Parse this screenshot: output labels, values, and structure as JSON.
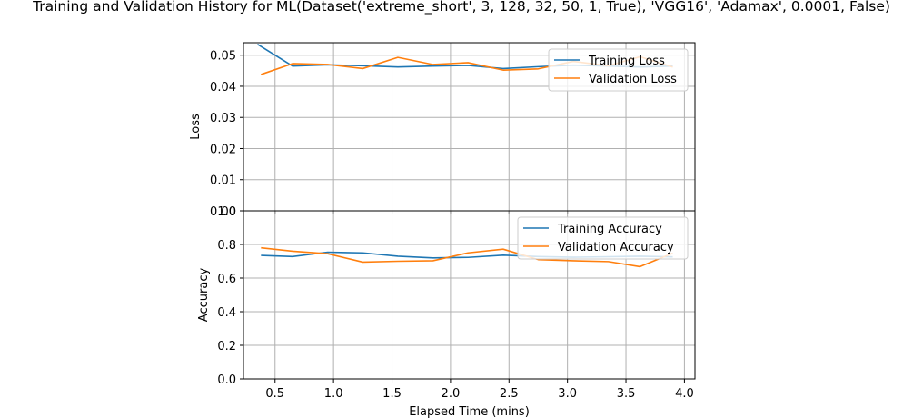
{
  "title": "Training and Validation History for ML(Dataset('extreme_short', 3, 128, 32, 50, 1, True), 'VGG16', 'Adamax', 0.0001, False)",
  "colors": {
    "training": "#1f77b4",
    "validation": "#ff7f0e",
    "grid": "#b0b0b0"
  },
  "chart_data": [
    {
      "type": "line",
      "ylabel": "Loss",
      "xlabel": "",
      "xlim": [
        0.23,
        4.09
      ],
      "ylim": [
        0.0,
        0.054
      ],
      "yticks": [
        0.0,
        0.01,
        0.02,
        0.03,
        0.04,
        0.05
      ],
      "ytick_labels": [
        "0.00",
        "0.01",
        "0.02",
        "0.03",
        "0.04",
        "0.05"
      ],
      "grid": true,
      "legend": "top-right",
      "series": [
        {
          "name": "Training Loss",
          "x": [
            0.35,
            0.65,
            0.95,
            1.25,
            1.55,
            1.85,
            2.15,
            2.45,
            2.75,
            3.05,
            3.35,
            3.62,
            3.9
          ],
          "values": [
            0.0535,
            0.0465,
            0.0469,
            0.0466,
            0.0462,
            0.0465,
            0.0467,
            0.0457,
            0.0463,
            0.0468,
            0.0465,
            0.0462,
            0.0465
          ]
        },
        {
          "name": "Validation Loss",
          "x": [
            0.38,
            0.65,
            0.95,
            1.25,
            1.55,
            1.85,
            2.15,
            2.45,
            2.75,
            3.05,
            3.35,
            3.62,
            3.9
          ],
          "values": [
            0.0438,
            0.0473,
            0.047,
            0.0457,
            0.0493,
            0.047,
            0.0476,
            0.0452,
            0.0456,
            0.048,
            0.0466,
            0.0495,
            0.0462
          ]
        }
      ]
    },
    {
      "type": "line",
      "ylabel": "Accuracy",
      "xlabel": "Elapsed Time (mins)",
      "xlim": [
        0.23,
        4.09
      ],
      "ylim": [
        0.0,
        1.0
      ],
      "yticks": [
        0.0,
        0.2,
        0.4,
        0.6,
        0.8,
        1.0
      ],
      "ytick_labels": [
        "0.0",
        "0.2",
        "0.4",
        "0.6",
        "0.8",
        "1.0"
      ],
      "xticks": [
        0.5,
        1.0,
        1.5,
        2.0,
        2.5,
        3.0,
        3.5,
        4.0
      ],
      "xtick_labels": [
        "0.5",
        "1.0",
        "1.5",
        "2.0",
        "2.5",
        "3.0",
        "3.5",
        "4.0"
      ],
      "grid": true,
      "legend": "top-right",
      "series": [
        {
          "name": "Training Accuracy",
          "x": [
            0.38,
            0.65,
            0.95,
            1.25,
            1.55,
            1.85,
            2.15,
            2.45,
            2.75,
            3.05,
            3.35,
            3.62,
            3.9
          ],
          "values": [
            0.735,
            0.728,
            0.754,
            0.75,
            0.73,
            0.72,
            0.723,
            0.736,
            0.728,
            0.724,
            0.727,
            0.73,
            0.726
          ]
        },
        {
          "name": "Validation Accuracy",
          "x": [
            0.38,
            0.65,
            0.95,
            1.25,
            1.55,
            1.85,
            2.15,
            2.45,
            2.75,
            3.05,
            3.35,
            3.62,
            3.9
          ],
          "values": [
            0.78,
            0.76,
            0.745,
            0.695,
            0.7,
            0.703,
            0.75,
            0.772,
            0.71,
            0.703,
            0.698,
            0.668,
            0.748
          ]
        }
      ]
    }
  ]
}
